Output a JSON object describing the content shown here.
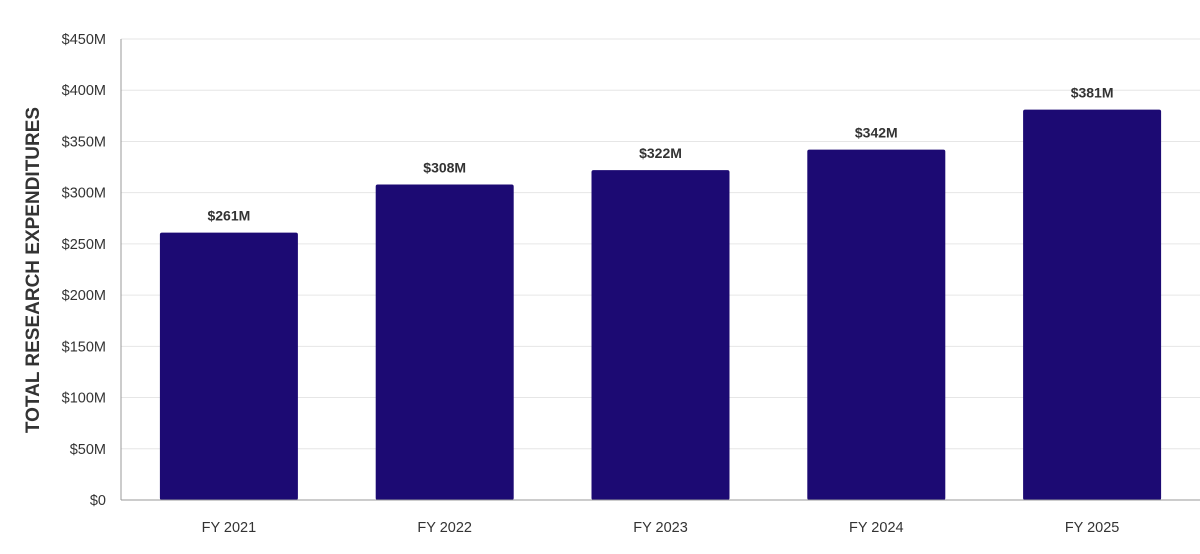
{
  "chart_data": {
    "type": "bar",
    "categories": [
      "FY 2021",
      "FY 2022",
      "FY 2023",
      "FY 2024",
      "FY 2025"
    ],
    "values": [
      261,
      308,
      322,
      342,
      381
    ],
    "data_labels": [
      "$261M",
      "$308M",
      "$322M",
      "$342M",
      "$381M"
    ],
    "ylabel": "TOTAL RESEARCH EXPENDITURES",
    "xlabel": "",
    "ylim": [
      0,
      450
    ],
    "yticks": [
      0,
      50,
      100,
      150,
      200,
      250,
      300,
      350,
      400,
      450
    ],
    "ytick_labels": [
      "$0",
      "$50M",
      "$100M",
      "$150M",
      "$200M",
      "$250M",
      "$300M",
      "$350M",
      "$400M",
      "$450M"
    ],
    "grid": true,
    "legend": "none",
    "colors": {
      "bar": "#1c0a73",
      "grid": "#e6e6e6",
      "axis": "#999999",
      "text": "#333333"
    }
  }
}
